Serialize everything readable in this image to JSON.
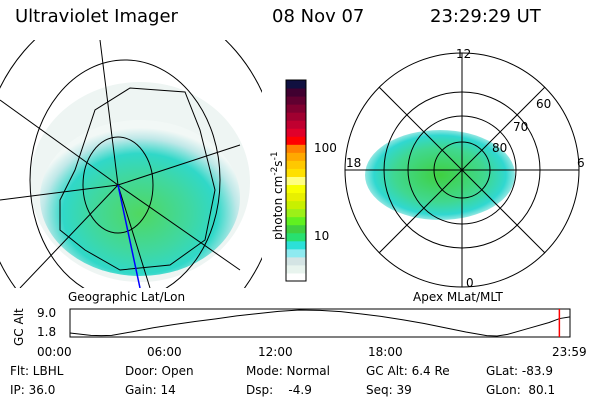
{
  "header": {
    "instrument": "Ultraviolet Imager",
    "date": "08 Nov 07",
    "time": "23:29:29 UT"
  },
  "colorbar": {
    "label": "photon cm^-2 s^-1",
    "label_main": "photon cm",
    "exp1": "-2",
    "mid": "s",
    "exp2": "-1",
    "ticks": [
      "100",
      "10"
    ],
    "scale": "log",
    "colors": [
      "#ffffff",
      "#e8f4ee",
      "#d4e4e4",
      "#8eeaf0",
      "#2ce0d8",
      "#28e070",
      "#40d040",
      "#60f020",
      "#9cf018",
      "#c8f000",
      "#e8f000",
      "#f8ff00",
      "#ffff80",
      "#ffe000",
      "#ffc800",
      "#ffa800",
      "#ff8000",
      "#ff0000",
      "#e0002a",
      "#c00030",
      "#a00030",
      "#800030",
      "#600030",
      "#400030",
      "#101040"
    ]
  },
  "left_panel": {
    "label": "Geographic Lat/Lon"
  },
  "right_panel": {
    "label": "Apex MLat/MLT",
    "mlt_labels": [
      "12",
      "18",
      "6",
      "0"
    ],
    "mlat_labels": [
      "60",
      "70",
      "80"
    ]
  },
  "alt_plot": {
    "ylabel": "GC Alt",
    "yticks": [
      "9.0",
      "1.8"
    ],
    "xticks": [
      "00:00",
      "06:00",
      "12:00",
      "18:00",
      "23:59"
    ],
    "series": {
      "hours": [
        0,
        1,
        1.5,
        2,
        3,
        4,
        5,
        6,
        7,
        8,
        9,
        10,
        11,
        12,
        13,
        14,
        15,
        16,
        17,
        18,
        19,
        20,
        20.5,
        21,
        22,
        23,
        23.5,
        24
      ],
      "gc_alt_re": [
        2.0,
        1.3,
        1.2,
        1.3,
        2.4,
        3.6,
        4.6,
        5.5,
        6.3,
        7.2,
        7.9,
        8.6,
        9.0,
        8.9,
        8.5,
        7.8,
        7.0,
        6.0,
        4.9,
        3.6,
        2.3,
        1.2,
        1.1,
        1.6,
        3.4,
        5.2,
        6.4,
        6.9
      ]
    },
    "current_hour": 23.49,
    "marker_color": "#ff0000"
  },
  "info": {
    "flt": "Flt: LBHL",
    "ip": "IP: 36.0",
    "door": "Door: Open",
    "gain": "Gain: 14",
    "mode": "Mode: Normal",
    "dsp": "Dsp:    -4.9",
    "gcalt": "GC Alt: 6.4 Re",
    "seq": "Seq: 39",
    "glat": "GLat: -83.9",
    "glon": "GLon:  80.1"
  }
}
